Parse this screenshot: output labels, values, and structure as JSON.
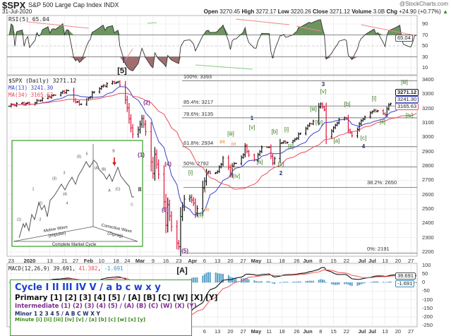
{
  "header": {
    "symbol": "$SPX",
    "name": "S&P 500 Large Cap Index",
    "exchange": "INDX",
    "date": "31-Jul-2020",
    "brand": "@StockCharts.com",
    "open_label": "Open",
    "open": "3270.45",
    "high_label": "High",
    "high": "3272.17",
    "low_label": "Low",
    "low": "3220.26",
    "close_label": "Close",
    "close": "3271.12",
    "volume_label": "Volume",
    "volume": "3.0B",
    "chg_label": "Chg",
    "chg": "+24.90 (+0.77%)"
  },
  "rsi": {
    "label": "RSI(5) 65.04",
    "value_box": "65.04",
    "ticks": [
      "90",
      "70",
      "50",
      "30",
      "10"
    ]
  },
  "price": {
    "label": "$SPX (Daily) 3271.12",
    "ma13_label": "MA(13) 3241.30",
    "ma34_label": "MA(34) 3165.63",
    "last_box": "3271.12",
    "ma13_box": "3241.30",
    "ma34_box": "3165.63",
    "ticks": [
      "3400",
      "3300",
      "3200",
      "3100",
      "3000",
      "2900",
      "2800",
      "2700",
      "2600",
      "2500",
      "2400",
      "2300",
      "2200"
    ]
  },
  "macd": {
    "label": "MACD(12,26,9)",
    "macd": "39.691",
    "signal": "41.382",
    "hist": "-1.691",
    "macd_box": "39.691",
    "hist_box": "-1.691",
    "ticks": [
      "100",
      "50",
      "0",
      "-50",
      "-100",
      "-150",
      "-200",
      "-250"
    ]
  },
  "xticks": [
    "23",
    "2020",
    "13",
    "21",
    "27",
    "Feb",
    "10",
    "18",
    "24",
    "Mar",
    "9",
    "16",
    "23",
    "Apr",
    "6",
    "13",
    "20",
    "27",
    "May",
    "11",
    "18",
    "26",
    "Jun",
    "8",
    "15",
    "22",
    "Jul",
    "6",
    "13",
    "20",
    "27"
  ],
  "fibs": [
    {
      "label": "100%: 3393",
      "price": 3393
    },
    {
      "label": "85.4%: 3217",
      "price": 3217
    },
    {
      "label": "78.6%: 3135",
      "price": 3135
    },
    {
      "label": "61.8%: 2934",
      "price": 2934
    },
    {
      "label": "50%: 2792",
      "price": 2792
    },
    {
      "label": "38.2%: 2650",
      "price": 2650
    },
    {
      "label": "0%: 2191",
      "price": 2191
    }
  ],
  "waves": [
    "I",
    "[5]",
    "(1)",
    "(2)",
    "(3)",
    "(4)",
    "(5)",
    "[A]",
    "[i]",
    "[ii]",
    "[iii]",
    "[iv]",
    "[v]",
    "1",
    "[a]",
    "[b]",
    "[c]",
    "2",
    "[i]",
    "[ii]",
    "[iii]",
    "[iv]",
    "[v]",
    "3",
    "[a]",
    "[b]",
    "[c]",
    "4",
    "[i]",
    "[ii]",
    "[iii]",
    "[iv]",
    "(i)",
    "(ii)",
    "(iii)",
    "(iv)",
    "(v)"
  ],
  "legend": {
    "cycle": "Cycle I II III IV V / a b c w x y",
    "primary": "Primary [1] [2] [3] [4] [5] / [A] [B] [C] [W] [X] [Y]",
    "intermediate": "Intermediate (1) (2) (3) (4) (5) / (A) (B) (C) (W) (X) (Y)",
    "minor": "Minor 1 2 3 4 5 / A B C W X Y",
    "minute": "Minute [i] [ii] [iii] [iv] [v] / [a] [b] [c] [w] [x] [y]"
  },
  "inset": {
    "motive": "Motive Wave",
    "impulse": "(Impulse)",
    "corrective": "Corrective Wave",
    "zigzag": "(Zigzag)",
    "cycle": "Complete Market Cycle",
    "end_label": "II",
    "labels": [
      "(1)",
      "(2)",
      "(3)",
      "(4)",
      "(5)",
      "(A)",
      "(B)",
      "(C)",
      "1",
      "2",
      "3",
      "4",
      "5",
      "A",
      "B",
      "C"
    ]
  },
  "colors": {
    "up": "#111111",
    "down": "#e0143c",
    "ma13": "#3a44c8",
    "ma34": "#e8505a",
    "rsi_over": "#4a7a3a",
    "rsi_under": "#8a4a4a",
    "macd_hist": "#3a8fc0",
    "cycle": "#1a3fd0",
    "intermediate": "#7b2d8b",
    "minor": "#1f2d6b",
    "minute": "#3a7a1a",
    "sub": "#f08a30"
  },
  "chart_data": {
    "type": "ohlc",
    "title": "$SPX S&P 500 Large Cap Index (Daily)",
    "x_unit": "calendar days since 20-Dec-2019",
    "ylim": [
      2180,
      3420
    ],
    "close_anchors": [
      [
        0,
        3221
      ],
      [
        14,
        3237
      ],
      [
        18,
        3253
      ],
      [
        25,
        3290
      ],
      [
        34,
        3325
      ],
      [
        38,
        3244
      ],
      [
        42,
        3225
      ],
      [
        49,
        3334
      ],
      [
        56,
        3373
      ],
      [
        61,
        3386
      ],
      [
        64,
        3337
      ],
      [
        67,
        3128
      ],
      [
        70,
        2954
      ],
      [
        73,
        3090
      ],
      [
        74,
        3130
      ],
      [
        77,
        3003
      ],
      [
        80,
        2746
      ],
      [
        81,
        2882
      ],
      [
        83,
        2741
      ],
      [
        84,
        2480
      ],
      [
        85,
        2711
      ],
      [
        87,
        2386
      ],
      [
        88,
        2529
      ],
      [
        91,
        2305
      ],
      [
        94,
        2237
      ],
      [
        95,
        2447
      ],
      [
        98,
        2630
      ],
      [
        102,
        2541
      ],
      [
        103,
        2470
      ],
      [
        105,
        2527
      ],
      [
        109,
        2750
      ],
      [
        115,
        2762
      ],
      [
        119,
        2875
      ],
      [
        122,
        2737
      ],
      [
        123,
        2799
      ],
      [
        129,
        2878
      ],
      [
        130,
        2939
      ],
      [
        133,
        2830
      ],
      [
        136,
        2842
      ],
      [
        139,
        2930
      ],
      [
        143,
        2930
      ],
      [
        145,
        2820
      ],
      [
        146,
        2852
      ],
      [
        148,
        2954
      ],
      [
        151,
        2971
      ],
      [
        155,
        2955
      ],
      [
        161,
        3044
      ],
      [
        167,
        3112
      ],
      [
        171,
        3232
      ],
      [
        173,
        3190
      ],
      [
        174,
        3002
      ],
      [
        178,
        3066
      ],
      [
        181,
        3124
      ],
      [
        185,
        3131
      ],
      [
        186,
        3050
      ],
      [
        188,
        3009
      ],
      [
        191,
        3053
      ],
      [
        193,
        3115
      ],
      [
        199,
        3179
      ],
      [
        202,
        3185
      ],
      [
        206,
        3155
      ],
      [
        207,
        3197
      ],
      [
        208,
        3226
      ],
      [
        214,
        3276
      ],
      [
        216,
        3236
      ],
      [
        218,
        3215
      ],
      [
        221,
        3239
      ],
      [
        223,
        3258
      ],
      [
        224,
        3246
      ],
      [
        225,
        3271
      ]
    ],
    "ma13_last": 3241.3,
    "ma34_last": 3165.63,
    "rsi_last": 65.04,
    "macd_last": 39.691,
    "signal_last": 41.382,
    "hist_last": -1.691
  }
}
